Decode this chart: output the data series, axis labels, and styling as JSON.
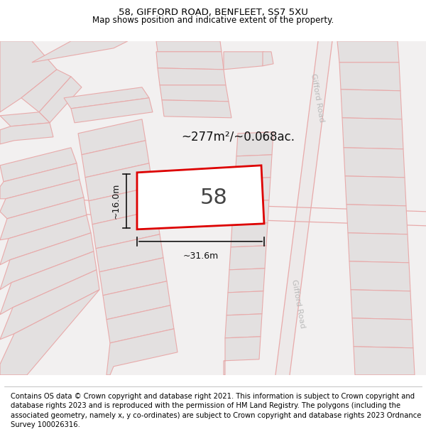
{
  "title_line1": "58, GIFFORD ROAD, BENFLEET, SS7 5XU",
  "title_line2": "Map shows position and indicative extent of the property.",
  "footer_text": "Contains OS data © Crown copyright and database right 2021. This information is subject to Crown copyright and database rights 2023 and is reproduced with the permission of HM Land Registry. The polygons (including the associated geometry, namely x, y co-ordinates) are subject to Crown copyright and database rights 2023 Ordnance Survey 100026316.",
  "area_text": "~277m²/~0.068ac.",
  "property_number": "58",
  "dim_width": "~31.6m",
  "dim_height": "~16.0m",
  "road_label_top": "Gifford Road",
  "road_label_bottom": "Gifford Road",
  "map_bg": "#f2f0f0",
  "block_fill": "#e3e0e0",
  "block_stroke": "#e8aaaa",
  "highlight_fill": "#ffffff",
  "highlight_stroke": "#dd0000",
  "title_fontsize": 9.5,
  "subtitle_fontsize": 8.5,
  "footer_fontsize": 7.2,
  "road_color": "#e8aaaa",
  "road_label_color": "#bbbbbb",
  "dim_color": "#111111",
  "area_color": "#111111"
}
